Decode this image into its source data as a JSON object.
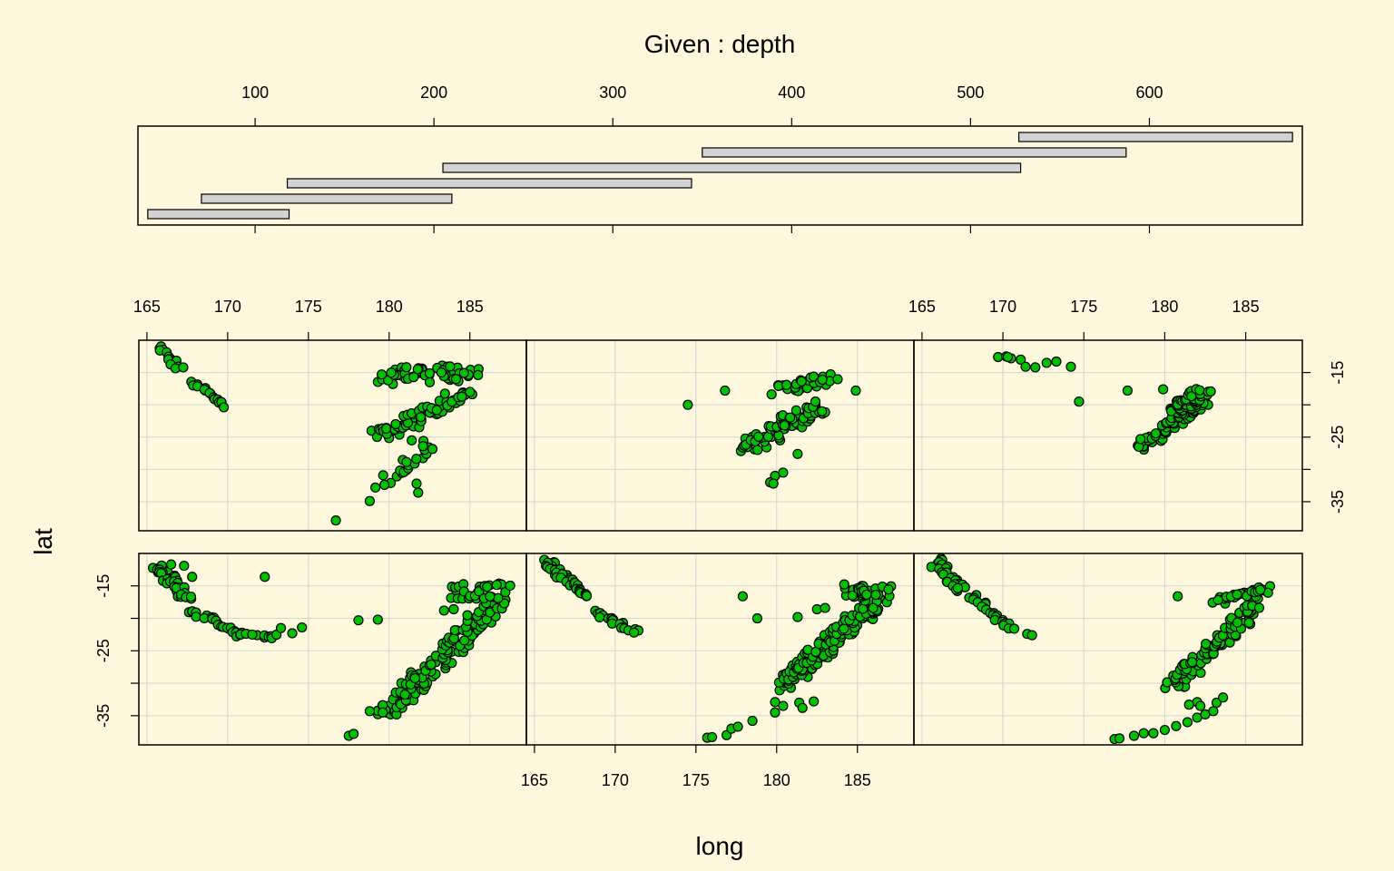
{
  "chart_data": {
    "type": "scatter",
    "title": "Given : depth",
    "xlabel": "long",
    "ylabel": "lat",
    "colors": {
      "background": "#fff8dc",
      "point_fill": "#00c000",
      "point_stroke": "#000000",
      "grid": "#d3d3d3",
      "bar_fill": "#d3d3d3"
    },
    "given": {
      "xlim": [
        34.5,
        685.5
      ],
      "ticks": [
        100,
        200,
        300,
        400,
        500,
        600
      ],
      "intervals": [
        [
          40,
          119
        ],
        [
          70,
          210
        ],
        [
          118,
          344
        ],
        [
          205,
          528
        ],
        [
          350,
          587
        ],
        [
          527,
          680
        ]
      ]
    },
    "xlim": [
      164.5,
      188.5
    ],
    "ylim": [
      -39.5,
      -10
    ],
    "x_ticks": [
      165,
      170,
      175,
      180,
      185
    ],
    "y_ticks": [
      -15,
      -25,
      -35
    ],
    "y_gridlines": [
      -15,
      -20,
      -25,
      -30,
      -35
    ],
    "panels": [
      {
        "given_interval": 0,
        "segments": [
          {
            "x0": 165.7,
            "y0": -11.1,
            "x1": 167.0,
            "y1": -14.5,
            "n": 14,
            "jx": 0.3,
            "jy": 0.4
          },
          {
            "x0": 167.8,
            "y0": -16.4,
            "x1": 169.8,
            "y1": -20.1,
            "n": 16,
            "jx": 0.3,
            "jy": 0.3
          },
          {
            "x0": 179.8,
            "y0": -15.5,
            "x1": 185.2,
            "y1": -15.0,
            "n": 55,
            "jx": 1.0,
            "jy": 1.3
          },
          {
            "x0": 179.4,
            "y0": -24.8,
            "x1": 184.8,
            "y1": -18.3,
            "n": 70,
            "jx": 0.7,
            "jy": 0.9
          },
          {
            "x0": 179.6,
            "y0": -32.4,
            "x1": 182.6,
            "y1": -26.0,
            "n": 22,
            "jx": 0.5,
            "jy": 0.6
          }
        ],
        "points": [
          [
            176.7,
            -37.9
          ],
          [
            178.8,
            -34.9
          ],
          [
            181.8,
            -33.6
          ],
          [
            181.7,
            -32.2
          ],
          [
            182.1,
            -26.4
          ],
          [
            181.4,
            -25.5
          ]
        ]
      },
      {
        "given_interval": 1,
        "segments": [
          {
            "x0": 178.3,
            "y0": -26.5,
            "x1": 182.5,
            "y1": -20.0,
            "n": 75,
            "jx": 0.9,
            "jy": 1.0
          },
          {
            "x0": 180.2,
            "y0": -17.8,
            "x1": 183.3,
            "y1": -15.8,
            "n": 30,
            "jx": 0.6,
            "jy": 0.8
          }
        ],
        "points": [
          [
            174.5,
            -20.0
          ],
          [
            176.8,
            -17.8
          ],
          [
            184.9,
            -17.8
          ],
          [
            181.3,
            -27.6
          ],
          [
            179.9,
            -31.0
          ],
          [
            180.4,
            -30.5
          ],
          [
            179.6,
            -32.0
          ],
          [
            179.8,
            -32.2
          ],
          [
            182.8,
            -21.0
          ],
          [
            182.4,
            -19.5
          ]
        ]
      },
      {
        "given_interval": 2,
        "segments": [
          {
            "x0": 178.5,
            "y0": -26.6,
            "x1": 182.4,
            "y1": -19.2,
            "n": 70,
            "jx": 0.5,
            "jy": 0.6
          },
          {
            "x0": 180.8,
            "y0": -21.0,
            "x1": 182.3,
            "y1": -17.8,
            "n": 55,
            "jx": 0.6,
            "jy": 0.6
          }
        ],
        "points": [
          [
            169.7,
            -12.6
          ],
          [
            170.2,
            -12.5
          ],
          [
            170.5,
            -12.8
          ],
          [
            170.3,
            -12.6
          ],
          [
            171.1,
            -13.0
          ],
          [
            171.4,
            -14.1
          ],
          [
            172.0,
            -14.2
          ],
          [
            172.7,
            -13.5
          ],
          [
            173.3,
            -13.3
          ],
          [
            174.2,
            -14.1
          ],
          [
            174.7,
            -19.5
          ],
          [
            177.7,
            -17.8
          ],
          [
            179.9,
            -17.6
          ],
          [
            178.4,
            -26.5
          ],
          [
            178.5,
            -25.3
          ]
        ]
      },
      {
        "given_interval": 3,
        "segments": [
          {
            "x0": 165.6,
            "y0": -12.0,
            "x1": 167.6,
            "y1": -16.8,
            "n": 35,
            "jx": 0.4,
            "jy": 0.7
          },
          {
            "x0": 167.8,
            "y0": -18.8,
            "x1": 170.6,
            "y1": -22.4,
            "n": 22,
            "jx": 0.3,
            "jy": 0.3
          },
          {
            "x0": 170.6,
            "y0": -22.6,
            "x1": 173.2,
            "y1": -22.8,
            "n": 12,
            "jx": 0.3,
            "jy": 0.3
          },
          {
            "x0": 179.8,
            "y0": -35.0,
            "x1": 186.6,
            "y1": -17.5,
            "n": 140,
            "jx": 0.8,
            "jy": 0.9
          },
          {
            "x0": 184.5,
            "y0": -15.8,
            "x1": 186.8,
            "y1": -15.8,
            "n": 35,
            "jx": 0.8,
            "jy": 1.2
          }
        ],
        "points": [
          [
            166.5,
            -11.7
          ],
          [
            167.3,
            -11.9
          ],
          [
            167.8,
            -13.6
          ],
          [
            172.3,
            -13.6
          ],
          [
            174.0,
            -22.3
          ],
          [
            173.3,
            -21.5
          ],
          [
            174.6,
            -21.4
          ],
          [
            178.1,
            -20.3
          ],
          [
            179.3,
            -20.2
          ],
          [
            183.4,
            -18.8
          ],
          [
            184.0,
            -18.6
          ],
          [
            177.5,
            -38.1
          ],
          [
            177.8,
            -37.8
          ],
          [
            178.8,
            -34.3
          ],
          [
            179.6,
            -34.5
          ]
        ]
      },
      {
        "given_interval": 4,
        "segments": [
          {
            "x0": 165.7,
            "y0": -11.3,
            "x1": 167.4,
            "y1": -14.8,
            "n": 38,
            "jx": 0.4,
            "jy": 0.5
          },
          {
            "x0": 167.6,
            "y0": -15.5,
            "x1": 168.3,
            "y1": -16.7,
            "n": 10,
            "jx": 0.2,
            "jy": 0.2
          },
          {
            "x0": 168.6,
            "y0": -19.0,
            "x1": 171.4,
            "y1": -22.2,
            "n": 20,
            "jx": 0.3,
            "jy": 0.3
          },
          {
            "x0": 180.2,
            "y0": -30.4,
            "x1": 186.2,
            "y1": -17.5,
            "n": 150,
            "jx": 0.7,
            "jy": 0.9
          },
          {
            "x0": 184.5,
            "y0": -15.7,
            "x1": 186.8,
            "y1": -16.0,
            "n": 30,
            "jx": 0.7,
            "jy": 1.0
          }
        ],
        "points": [
          [
            177.9,
            -16.6
          ],
          [
            178.8,
            -20.0
          ],
          [
            181.3,
            -19.8
          ],
          [
            182.5,
            -18.6
          ],
          [
            183.0,
            -18.4
          ],
          [
            175.7,
            -38.4
          ],
          [
            176.0,
            -38.3
          ],
          [
            176.9,
            -38.0
          ],
          [
            177.2,
            -37.0
          ],
          [
            177.6,
            -36.7
          ],
          [
            178.5,
            -35.8
          ],
          [
            179.9,
            -34.5
          ],
          [
            180.4,
            -33.5
          ],
          [
            181.4,
            -33.0
          ],
          [
            181.6,
            -33.8
          ],
          [
            182.3,
            -32.8
          ],
          [
            179.9,
            -32.9
          ]
        ]
      },
      {
        "given_interval": 5,
        "segments": [
          {
            "x0": 165.8,
            "y0": -11.1,
            "x1": 167.4,
            "y1": -15.8,
            "n": 30,
            "jx": 0.4,
            "jy": 0.6
          },
          {
            "x0": 168.1,
            "y0": -16.6,
            "x1": 170.4,
            "y1": -21.4,
            "n": 22,
            "jx": 0.3,
            "jy": 0.3
          },
          {
            "x0": 180.5,
            "y0": -30.5,
            "x1": 185.8,
            "y1": -17.6,
            "n": 90,
            "jx": 0.6,
            "jy": 0.8
          },
          {
            "x0": 183.5,
            "y0": -17.4,
            "x1": 186.4,
            "y1": -15.4,
            "n": 30,
            "jx": 0.6,
            "jy": 0.6
          }
        ],
        "points": [
          [
            170.7,
            -21.6
          ],
          [
            171.5,
            -22.4
          ],
          [
            171.8,
            -22.6
          ],
          [
            180.8,
            -16.6
          ],
          [
            176.9,
            -38.6
          ],
          [
            177.2,
            -38.5
          ],
          [
            178.1,
            -38.1
          ],
          [
            178.7,
            -37.7
          ],
          [
            179.3,
            -37.7
          ],
          [
            180.0,
            -37.2
          ],
          [
            180.7,
            -36.6
          ],
          [
            181.4,
            -36.0
          ],
          [
            182.0,
            -35.3
          ],
          [
            182.5,
            -34.8
          ],
          [
            183.0,
            -34.3
          ],
          [
            182.0,
            -32.9
          ],
          [
            183.2,
            -33.0
          ],
          [
            182.2,
            -33.5
          ],
          [
            183.6,
            -32.2
          ],
          [
            181.5,
            -33.3
          ]
        ]
      }
    ]
  }
}
